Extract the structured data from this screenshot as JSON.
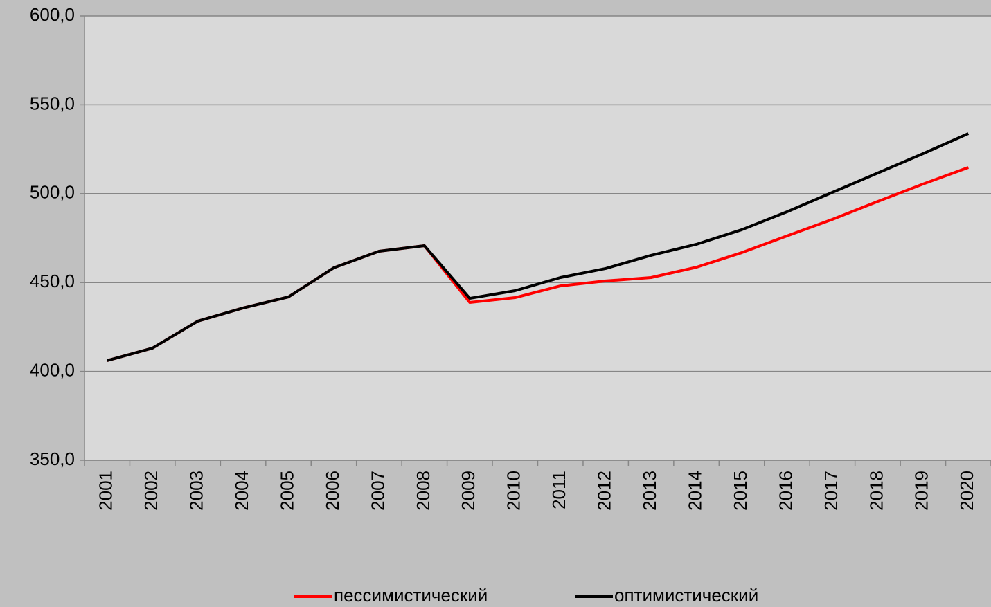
{
  "chart_data": {
    "type": "line",
    "categories": [
      "2001",
      "2002",
      "2003",
      "2004",
      "2005",
      "2006",
      "2007",
      "2008",
      "2009",
      "2010",
      "2011",
      "2012",
      "2013",
      "2014",
      "2015",
      "2016",
      "2017",
      "2018",
      "2019",
      "2020"
    ],
    "series": [
      {
        "name": "пессимистический",
        "color": "#ff0000",
        "values": [
          406.1,
          413.1,
          428.3,
          435.7,
          441.9,
          458.3,
          467.6,
          470.7,
          438.8,
          441.5,
          448.1,
          450.9,
          452.8,
          458.6,
          466.8,
          476.2,
          485.5,
          495.6,
          505.4,
          514.7
        ]
      },
      {
        "name": "оптимистический",
        "color": "#000000",
        "values": [
          406.1,
          413.1,
          428.3,
          435.7,
          441.9,
          458.3,
          467.6,
          470.7,
          441.1,
          445.4,
          452.8,
          457.9,
          465.3,
          471.5,
          479.7,
          489.8,
          500.7,
          511.6,
          522.5,
          533.8
        ]
      }
    ],
    "ylim": [
      350,
      600
    ],
    "yticks": [
      {
        "value": 350,
        "label": "350,0"
      },
      {
        "value": 400,
        "label": "400,0"
      },
      {
        "value": 450,
        "label": "450,0"
      },
      {
        "value": 500,
        "label": "500,0"
      },
      {
        "value": 550,
        "label": "550,0"
      },
      {
        "value": 600,
        "label": "600,0"
      }
    ],
    "grid": true,
    "legend": "bottom"
  }
}
